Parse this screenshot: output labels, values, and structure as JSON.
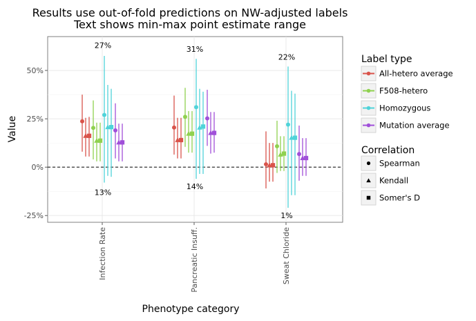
{
  "chart_data": {
    "type": "scatter",
    "title": "Results use out-of-fold predictions on NW-adjusted labels",
    "subtitle": "Text shows min-max point estimate range",
    "xlabel": "Phenotype category",
    "ylabel": "Value",
    "categories": [
      "Infection Rate",
      "Pancreatic Insuff.",
      "Sweat Chloride"
    ],
    "ylim": [
      -0.285,
      0.675
    ],
    "yticks": [
      -0.25,
      0,
      0.25,
      0.5
    ],
    "ytick_labels": [
      "-25%",
      "0%",
      "25%",
      "50%"
    ],
    "reference_line": 0,
    "grid": true,
    "legend_position": "right",
    "legend_label_type": {
      "title": "Label type",
      "entries": [
        {
          "name": "All-hetero average",
          "color": "#d9534a"
        },
        {
          "name": "F508-hetero",
          "color": "#8fd14f"
        },
        {
          "name": "Homozygous",
          "color": "#4fd3d9"
        },
        {
          "name": "Mutation average",
          "color": "#a04fd9"
        }
      ]
    },
    "legend_correlation": {
      "title": "Correlation",
      "entries": [
        {
          "name": "Spearman",
          "shape": "circle"
        },
        {
          "name": "Kendall",
          "shape": "triangle"
        },
        {
          "name": "Somer's D",
          "shape": "square"
        }
      ]
    },
    "range_labels": [
      {
        "category": "Infection Rate",
        "max": "27%",
        "min": "13%",
        "max_y": 0.63,
        "min_y": -0.13
      },
      {
        "category": "Pancreatic Insuff.",
        "max": "31%",
        "min": "14%",
        "max_y": 0.61,
        "min_y": -0.1
      },
      {
        "category": "Sweat Chloride",
        "max": "22%",
        "min": "1%",
        "max_y": 0.57,
        "min_y": -0.25
      }
    ],
    "series": [
      {
        "label_type": "All-hetero average",
        "correlation": "Spearman",
        "values": [
          {
            "category": "Infection Rate",
            "y": 0.237,
            "low": 0.08,
            "high": 0.375
          },
          {
            "category": "Pancreatic Insuff.",
            "y": 0.205,
            "low": 0.065,
            "high": 0.37
          },
          {
            "category": "Sweat Chloride",
            "y": 0.015,
            "low": -0.11,
            "high": 0.185
          }
        ]
      },
      {
        "label_type": "All-hetero average",
        "correlation": "Kendall",
        "values": [
          {
            "category": "Infection Rate",
            "y": 0.162,
            "low": 0.055,
            "high": 0.255
          },
          {
            "category": "Pancreatic Insuff.",
            "y": 0.14,
            "low": 0.045,
            "high": 0.255
          },
          {
            "category": "Sweat Chloride",
            "y": 0.01,
            "low": -0.075,
            "high": 0.125
          }
        ]
      },
      {
        "label_type": "All-hetero average",
        "correlation": "Somer's D",
        "values": [
          {
            "category": "Infection Rate",
            "y": 0.162,
            "low": 0.055,
            "high": 0.26
          },
          {
            "category": "Pancreatic Insuff.",
            "y": 0.14,
            "low": 0.045,
            "high": 0.255
          },
          {
            "category": "Sweat Chloride",
            "y": 0.01,
            "low": -0.075,
            "high": 0.125
          }
        ]
      },
      {
        "label_type": "F508-hetero",
        "correlation": "Spearman",
        "values": [
          {
            "category": "Infection Rate",
            "y": 0.203,
            "low": 0.04,
            "high": 0.345
          },
          {
            "category": "Pancreatic Insuff.",
            "y": 0.26,
            "low": 0.105,
            "high": 0.41
          },
          {
            "category": "Sweat Chloride",
            "y": 0.108,
            "low": -0.03,
            "high": 0.24
          }
        ]
      },
      {
        "label_type": "F508-hetero",
        "correlation": "Kendall",
        "values": [
          {
            "category": "Infection Rate",
            "y": 0.137,
            "low": 0.03,
            "high": 0.23
          },
          {
            "category": "Pancreatic Insuff.",
            "y": 0.173,
            "low": 0.075,
            "high": 0.29
          },
          {
            "category": "Sweat Chloride",
            "y": 0.065,
            "low": -0.02,
            "high": 0.16
          }
        ]
      },
      {
        "label_type": "F508-hetero",
        "correlation": "Somer's D",
        "values": [
          {
            "category": "Infection Rate",
            "y": 0.137,
            "low": 0.03,
            "high": 0.23
          },
          {
            "category": "Pancreatic Insuff.",
            "y": 0.173,
            "low": 0.075,
            "high": 0.29
          },
          {
            "category": "Sweat Chloride",
            "y": 0.07,
            "low": -0.02,
            "high": 0.16
          }
        ]
      },
      {
        "label_type": "Homozygous",
        "correlation": "Spearman",
        "values": [
          {
            "category": "Infection Rate",
            "y": 0.27,
            "low": -0.08,
            "high": 0.575
          },
          {
            "category": "Pancreatic Insuff.",
            "y": 0.31,
            "low": -0.06,
            "high": 0.56
          },
          {
            "category": "Sweat Chloride",
            "y": 0.22,
            "low": -0.21,
            "high": 0.52
          }
        ]
      },
      {
        "label_type": "Homozygous",
        "correlation": "Kendall",
        "values": [
          {
            "category": "Infection Rate",
            "y": 0.207,
            "low": -0.045,
            "high": 0.425
          },
          {
            "category": "Pancreatic Insuff.",
            "y": 0.205,
            "low": -0.035,
            "high": 0.405
          },
          {
            "category": "Sweat Chloride",
            "y": 0.152,
            "low": -0.145,
            "high": 0.395
          }
        ]
      },
      {
        "label_type": "Homozygous",
        "correlation": "Somer's D",
        "values": [
          {
            "category": "Infection Rate",
            "y": 0.207,
            "low": -0.05,
            "high": 0.405
          },
          {
            "category": "Pancreatic Insuff.",
            "y": 0.21,
            "low": -0.035,
            "high": 0.39
          },
          {
            "category": "Sweat Chloride",
            "y": 0.152,
            "low": -0.145,
            "high": 0.38
          }
        ]
      },
      {
        "label_type": "Mutation average",
        "correlation": "Spearman",
        "values": [
          {
            "category": "Infection Rate",
            "y": 0.19,
            "low": 0.045,
            "high": 0.33
          },
          {
            "category": "Pancreatic Insuff.",
            "y": 0.252,
            "low": 0.11,
            "high": 0.4
          },
          {
            "category": "Sweat Chloride",
            "y": 0.068,
            "low": -0.07,
            "high": 0.215
          }
        ]
      },
      {
        "label_type": "Mutation average",
        "correlation": "Kendall",
        "values": [
          {
            "category": "Infection Rate",
            "y": 0.128,
            "low": 0.03,
            "high": 0.225
          },
          {
            "category": "Pancreatic Insuff.",
            "y": 0.177,
            "low": 0.07,
            "high": 0.285
          },
          {
            "category": "Sweat Chloride",
            "y": 0.047,
            "low": -0.045,
            "high": 0.15
          }
        ]
      },
      {
        "label_type": "Mutation average",
        "correlation": "Somer's D",
        "values": [
          {
            "category": "Infection Rate",
            "y": 0.128,
            "low": 0.03,
            "high": 0.225
          },
          {
            "category": "Pancreatic Insuff.",
            "y": 0.177,
            "low": 0.075,
            "high": 0.285
          },
          {
            "category": "Sweat Chloride",
            "y": 0.047,
            "low": -0.045,
            "high": 0.15
          }
        ]
      }
    ]
  }
}
